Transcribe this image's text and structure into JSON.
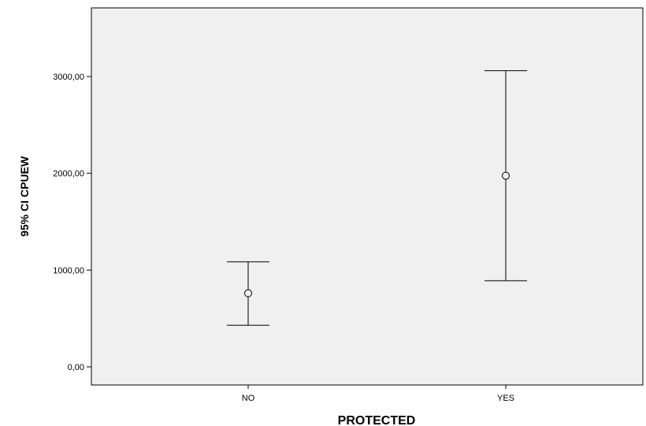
{
  "chart_data": {
    "type": "errorbar",
    "title": "",
    "xlabel": "PROTECTED",
    "ylabel": "95% CI CPUEW",
    "categories": [
      "NO",
      "YES"
    ],
    "means": [
      760,
      1975
    ],
    "lower": [
      430,
      890
    ],
    "upper": [
      1085,
      3060
    ],
    "ylim": [
      -200,
      3700
    ],
    "yticks": [
      0,
      1000,
      2000,
      3000
    ],
    "ytick_labels": [
      "0,00",
      "1000,00",
      "2000,00",
      "3000,00"
    ],
    "grid": false,
    "colors": {
      "plot_background": "#f0f0f0",
      "marks": "#000000"
    }
  }
}
